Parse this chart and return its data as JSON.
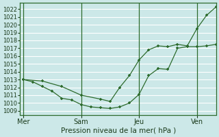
{
  "bg_color": "#cce8e8",
  "grid_color": "#ffffff",
  "line_color": "#2d6b2d",
  "marker_color": "#2d6b2d",
  "ylabel_ticks": [
    1009,
    1010,
    1011,
    1012,
    1013,
    1014,
    1015,
    1016,
    1017,
    1018,
    1019,
    1020,
    1021,
    1022
  ],
  "ylim": [
    1008.5,
    1022.8
  ],
  "xlabel": "Pression niveau de la mer( hPa )",
  "xtick_labels": [
    "Mer",
    "Sam",
    "Jeu",
    "Ven"
  ],
  "xtick_positions": [
    0,
    36,
    72,
    108
  ],
  "vline_positions": [
    0,
    36,
    72,
    108
  ],
  "xlim": [
    -2,
    120
  ],
  "series1_x": [
    0,
    6,
    12,
    18,
    24,
    30,
    36,
    42,
    48,
    54,
    60,
    66,
    72,
    78,
    84,
    90,
    96,
    102,
    108,
    114,
    120
  ],
  "series1_y": [
    1013.0,
    1012.7,
    1012.1,
    1011.5,
    1010.6,
    1010.4,
    1009.8,
    1009.5,
    1009.4,
    1009.3,
    1009.5,
    1010.0,
    1011.1,
    1013.5,
    1014.4,
    1014.3,
    1017.0,
    1017.2,
    1017.2,
    1017.3,
    1017.5
  ],
  "series2_x": [
    0,
    12,
    24,
    36,
    48,
    54,
    60,
    66,
    72,
    78,
    84,
    90,
    96,
    102,
    108,
    114,
    120
  ],
  "series2_y": [
    1013.0,
    1012.8,
    1012.1,
    1011.0,
    1010.5,
    1010.2,
    1012.0,
    1013.5,
    1015.5,
    1016.8,
    1017.3,
    1017.2,
    1017.5,
    1017.3,
    1019.5,
    1021.2,
    1022.3
  ]
}
